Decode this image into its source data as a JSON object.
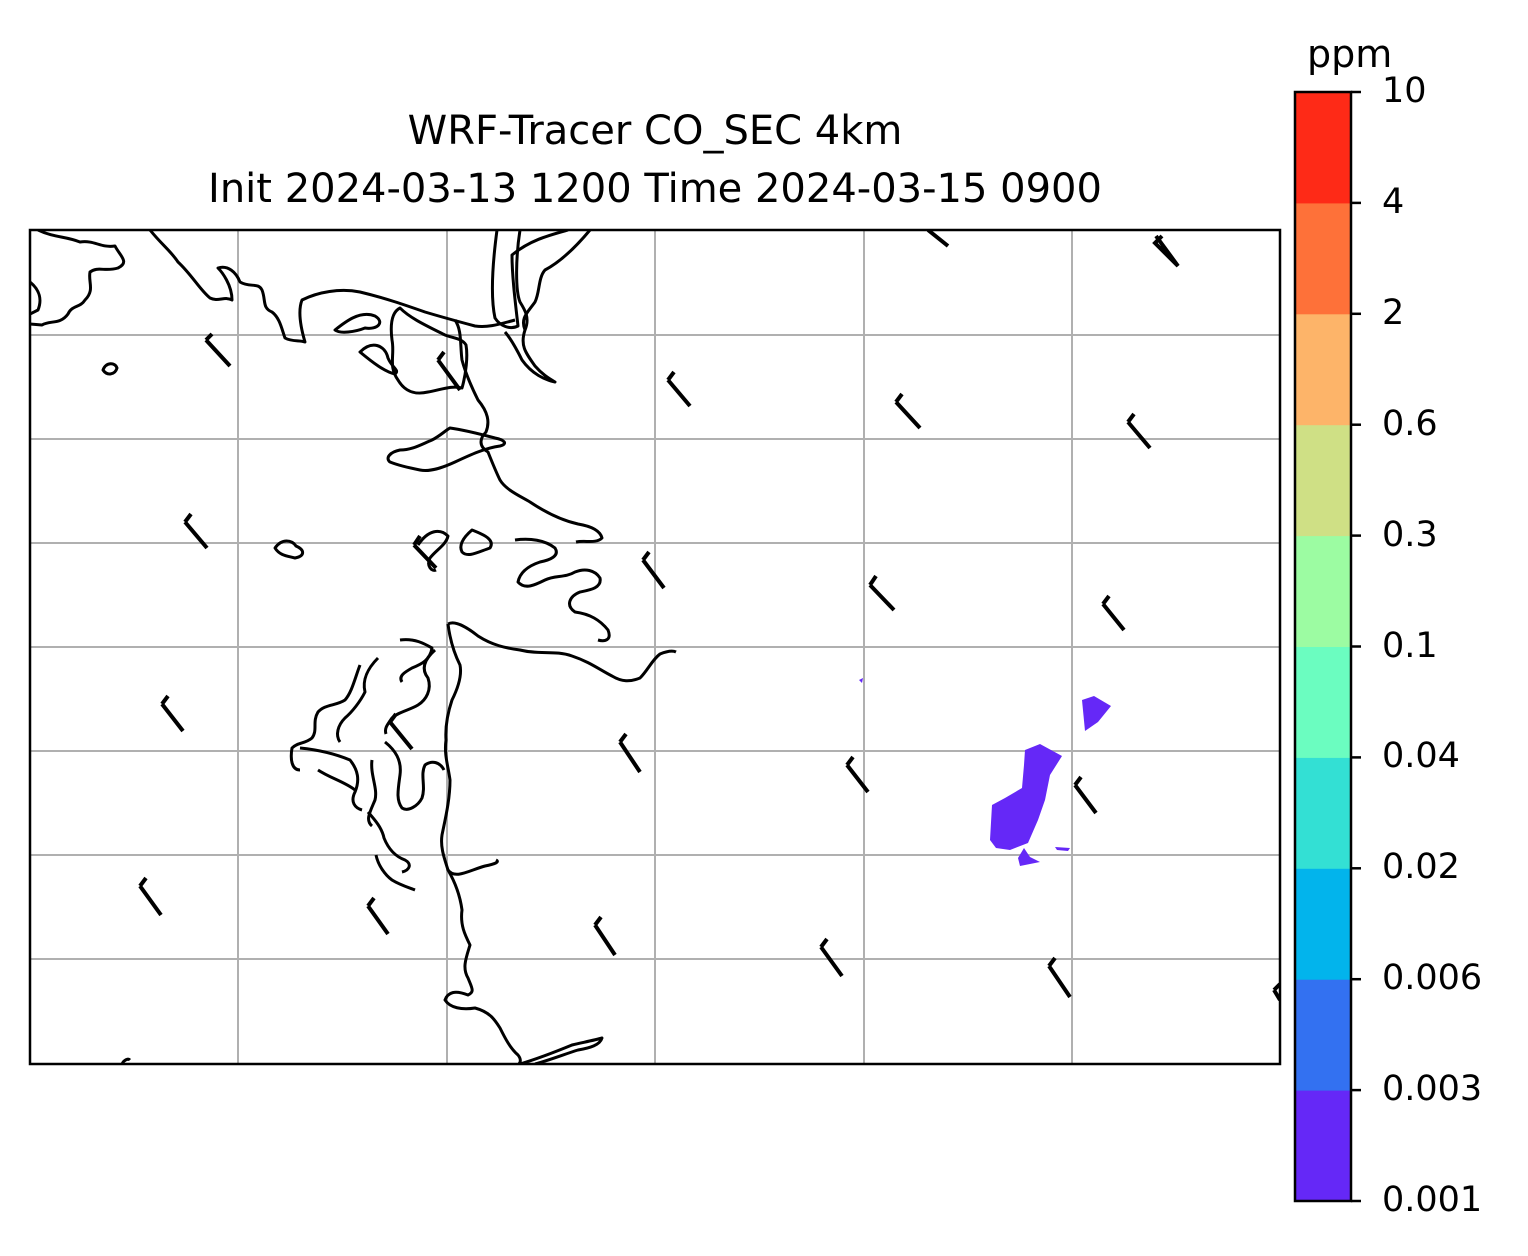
{
  "title": {
    "line1": "WRF-Tracer CO_SEC 4km",
    "line2": "Init 2024-03-13 1200 Time 2024-03-15 0900"
  },
  "colorbar": {
    "unit": "ppm",
    "ticks": [
      "0.001",
      "0.003",
      "0.006",
      "0.02",
      "0.04",
      "0.1",
      "0.3",
      "0.6",
      "2",
      "4",
      "10"
    ],
    "colors": [
      "#6528f7",
      "#3371f1",
      "#02b4ec",
      "#33e0d4",
      "#6bfdc0",
      "#9cfca2",
      "#cfe085",
      "#fdb469",
      "#fe7139",
      "#fe2a17"
    ]
  },
  "map": {
    "coastline_color": "#000000",
    "gridline_color": "#b0b0b0",
    "concentration_fill": "#6528f7"
  }
}
